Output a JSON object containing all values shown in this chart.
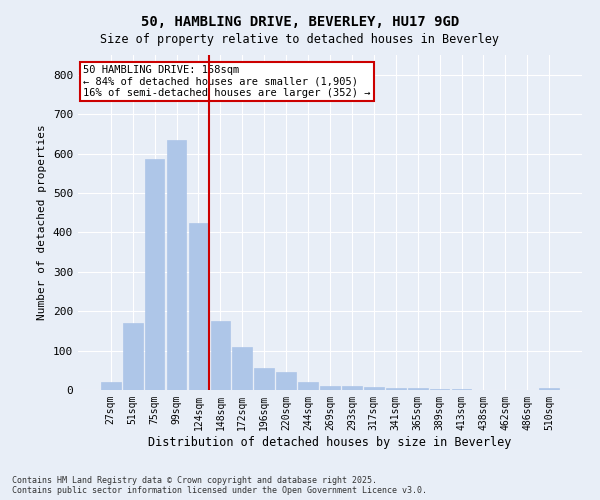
{
  "title_line1": "50, HAMBLING DRIVE, BEVERLEY, HU17 9GD",
  "title_line2": "Size of property relative to detached houses in Beverley",
  "xlabel": "Distribution of detached houses by size in Beverley",
  "ylabel": "Number of detached properties",
  "categories": [
    "27sqm",
    "51sqm",
    "75sqm",
    "99sqm",
    "124sqm",
    "148sqm",
    "172sqm",
    "196sqm",
    "220sqm",
    "244sqm",
    "269sqm",
    "293sqm",
    "317sqm",
    "341sqm",
    "365sqm",
    "389sqm",
    "413sqm",
    "438sqm",
    "462sqm",
    "486sqm",
    "510sqm"
  ],
  "values": [
    20,
    170,
    585,
    635,
    425,
    175,
    110,
    55,
    45,
    20,
    10,
    10,
    8,
    5,
    4,
    2,
    2,
    1,
    1,
    0,
    5
  ],
  "bar_color": "#aec6e8",
  "bar_edgecolor": "#aec6e8",
  "vline_pos": 4.5,
  "vline_color": "#cc0000",
  "annotation_text": "50 HAMBLING DRIVE: 158sqm\n← 84% of detached houses are smaller (1,905)\n16% of semi-detached houses are larger (352) →",
  "annotation_box_color": "#cc0000",
  "ylim": [
    0,
    850
  ],
  "yticks": [
    0,
    100,
    200,
    300,
    400,
    500,
    600,
    700,
    800
  ],
  "background_color": "#e8eef7",
  "grid_color": "#ffffff",
  "footnote_line1": "Contains HM Land Registry data © Crown copyright and database right 2025.",
  "footnote_line2": "Contains public sector information licensed under the Open Government Licence v3.0."
}
